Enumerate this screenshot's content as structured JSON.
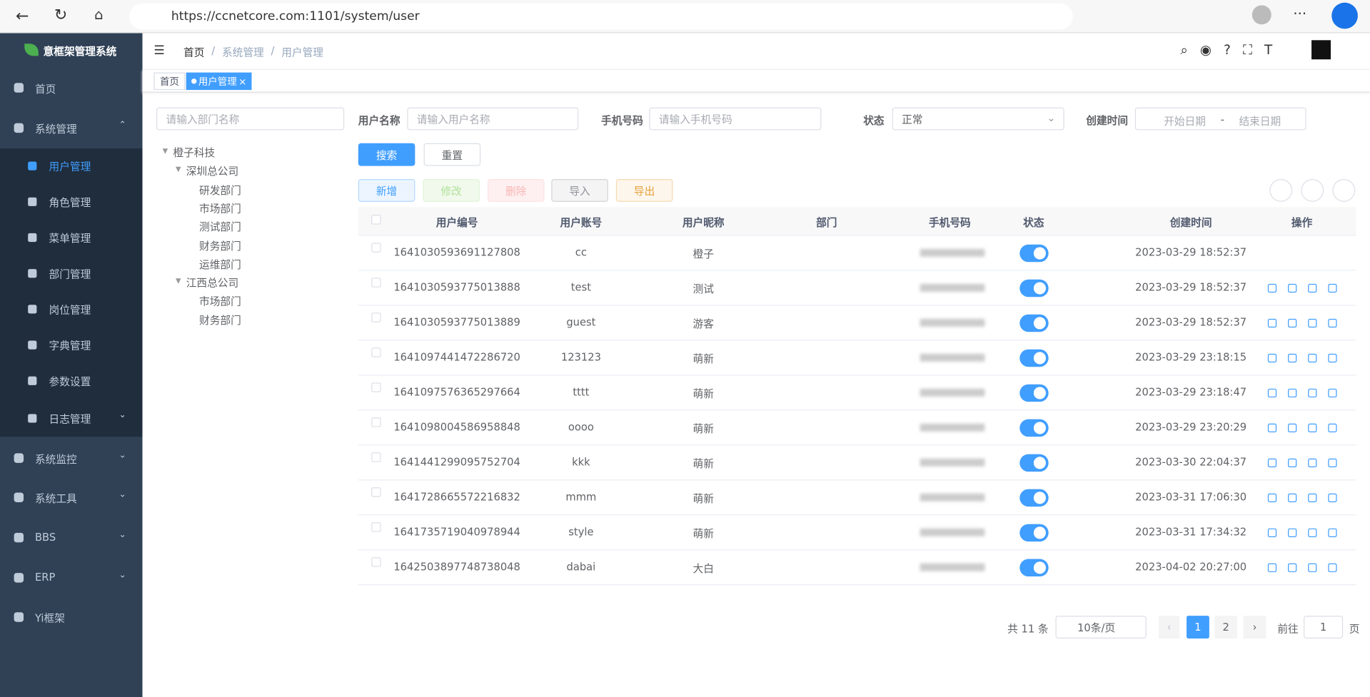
{
  "browser": {
    "url": "https://ccnetcore.com:1101/system/user"
  },
  "sidebar": {
    "title": "意框架管理系统",
    "menu": [
      {
        "label": "首页"
      },
      {
        "label": "系统管理",
        "children": [
          "用户管理",
          "角色管理",
          "菜单管理",
          "部门管理",
          "岗位管理",
          "字典管理",
          "参数设置",
          "日志管理"
        ]
      },
      {
        "label": "系统监控"
      },
      {
        "label": "系统工具"
      },
      {
        "label": "BBS"
      },
      {
        "label": "ERP"
      },
      {
        "label": "Yi框架"
      }
    ]
  },
  "breadcrumb": [
    "首页",
    "系统管理",
    "用户管理"
  ],
  "tabs": [
    "首页",
    "用户管理"
  ],
  "dept_search": {
    "placeholder": "请输入部门名称"
  },
  "tree": [
    {
      "label": "橙子科技",
      "children": [
        {
          "label": "深圳总公司",
          "children": [
            {
              "label": "研发部门"
            },
            {
              "label": "市场部门"
            },
            {
              "label": "测试部门"
            },
            {
              "label": "财务部门"
            },
            {
              "label": "运维部门"
            }
          ]
        },
        {
          "label": "江西总公司",
          "children": [
            {
              "label": "市场部门"
            },
            {
              "label": "财务部门"
            }
          ]
        }
      ]
    }
  ],
  "filters": {
    "username": {
      "label": "用户名称",
      "placeholder": "请输入用户名称"
    },
    "phone": {
      "label": "手机号码",
      "placeholder": "请输入手机号码"
    },
    "status": {
      "label": "状态",
      "value": "正常"
    },
    "created": {
      "label": "创建时间",
      "start": "开始日期",
      "separator": "-",
      "end": "结束日期"
    }
  },
  "buttons": {
    "search": "搜索",
    "reset": "重置",
    "add": "新增",
    "edit": "修改",
    "delete": "删除",
    "import": "导入",
    "export": "导出"
  },
  "table": {
    "columns": [
      "用户编号",
      "用户账号",
      "用户昵称",
      "部门",
      "手机号码",
      "状态",
      "创建时间",
      "操作"
    ],
    "rows": [
      {
        "id": "1641030593691127808",
        "account": "cc",
        "nickname": "橙子",
        "created": "2023-03-29 18:52:37"
      },
      {
        "id": "1641030593775013888",
        "account": "test",
        "nickname": "测试",
        "created": "2023-03-29 18:52:37"
      },
      {
        "id": "1641030593775013889",
        "account": "guest",
        "nickname": "游客",
        "created": "2023-03-29 18:52:37"
      },
      {
        "id": "1641097441472286720",
        "account": "123123",
        "nickname": "萌新",
        "created": "2023-03-29 23:18:15"
      },
      {
        "id": "1641097576365297664",
        "account": "tttt",
        "nickname": "萌新",
        "created": "2023-03-29 23:18:47"
      },
      {
        "id": "1641098004586958848",
        "account": "oooo",
        "nickname": "萌新",
        "created": "2023-03-29 23:20:29"
      },
      {
        "id": "1641441299095752704",
        "account": "kkk",
        "nickname": "萌新",
        "created": "2023-03-30 22:04:37"
      },
      {
        "id": "1641728665572216832",
        "account": "mmm",
        "nickname": "萌新",
        "created": "2023-03-31 17:06:30"
      },
      {
        "id": "1641735719040978944",
        "account": "style",
        "nickname": "萌新",
        "created": "2023-03-31 17:34:32"
      },
      {
        "id": "1642503897748738048",
        "account": "dabai",
        "nickname": "大白",
        "created": "2023-04-02 20:27:00"
      }
    ]
  },
  "pagination": {
    "total": "共 11 条",
    "page_size": "10条/页",
    "pages": [
      "1",
      "2"
    ],
    "goto": "前往",
    "goto_value": "1",
    "page_unit": "页"
  }
}
